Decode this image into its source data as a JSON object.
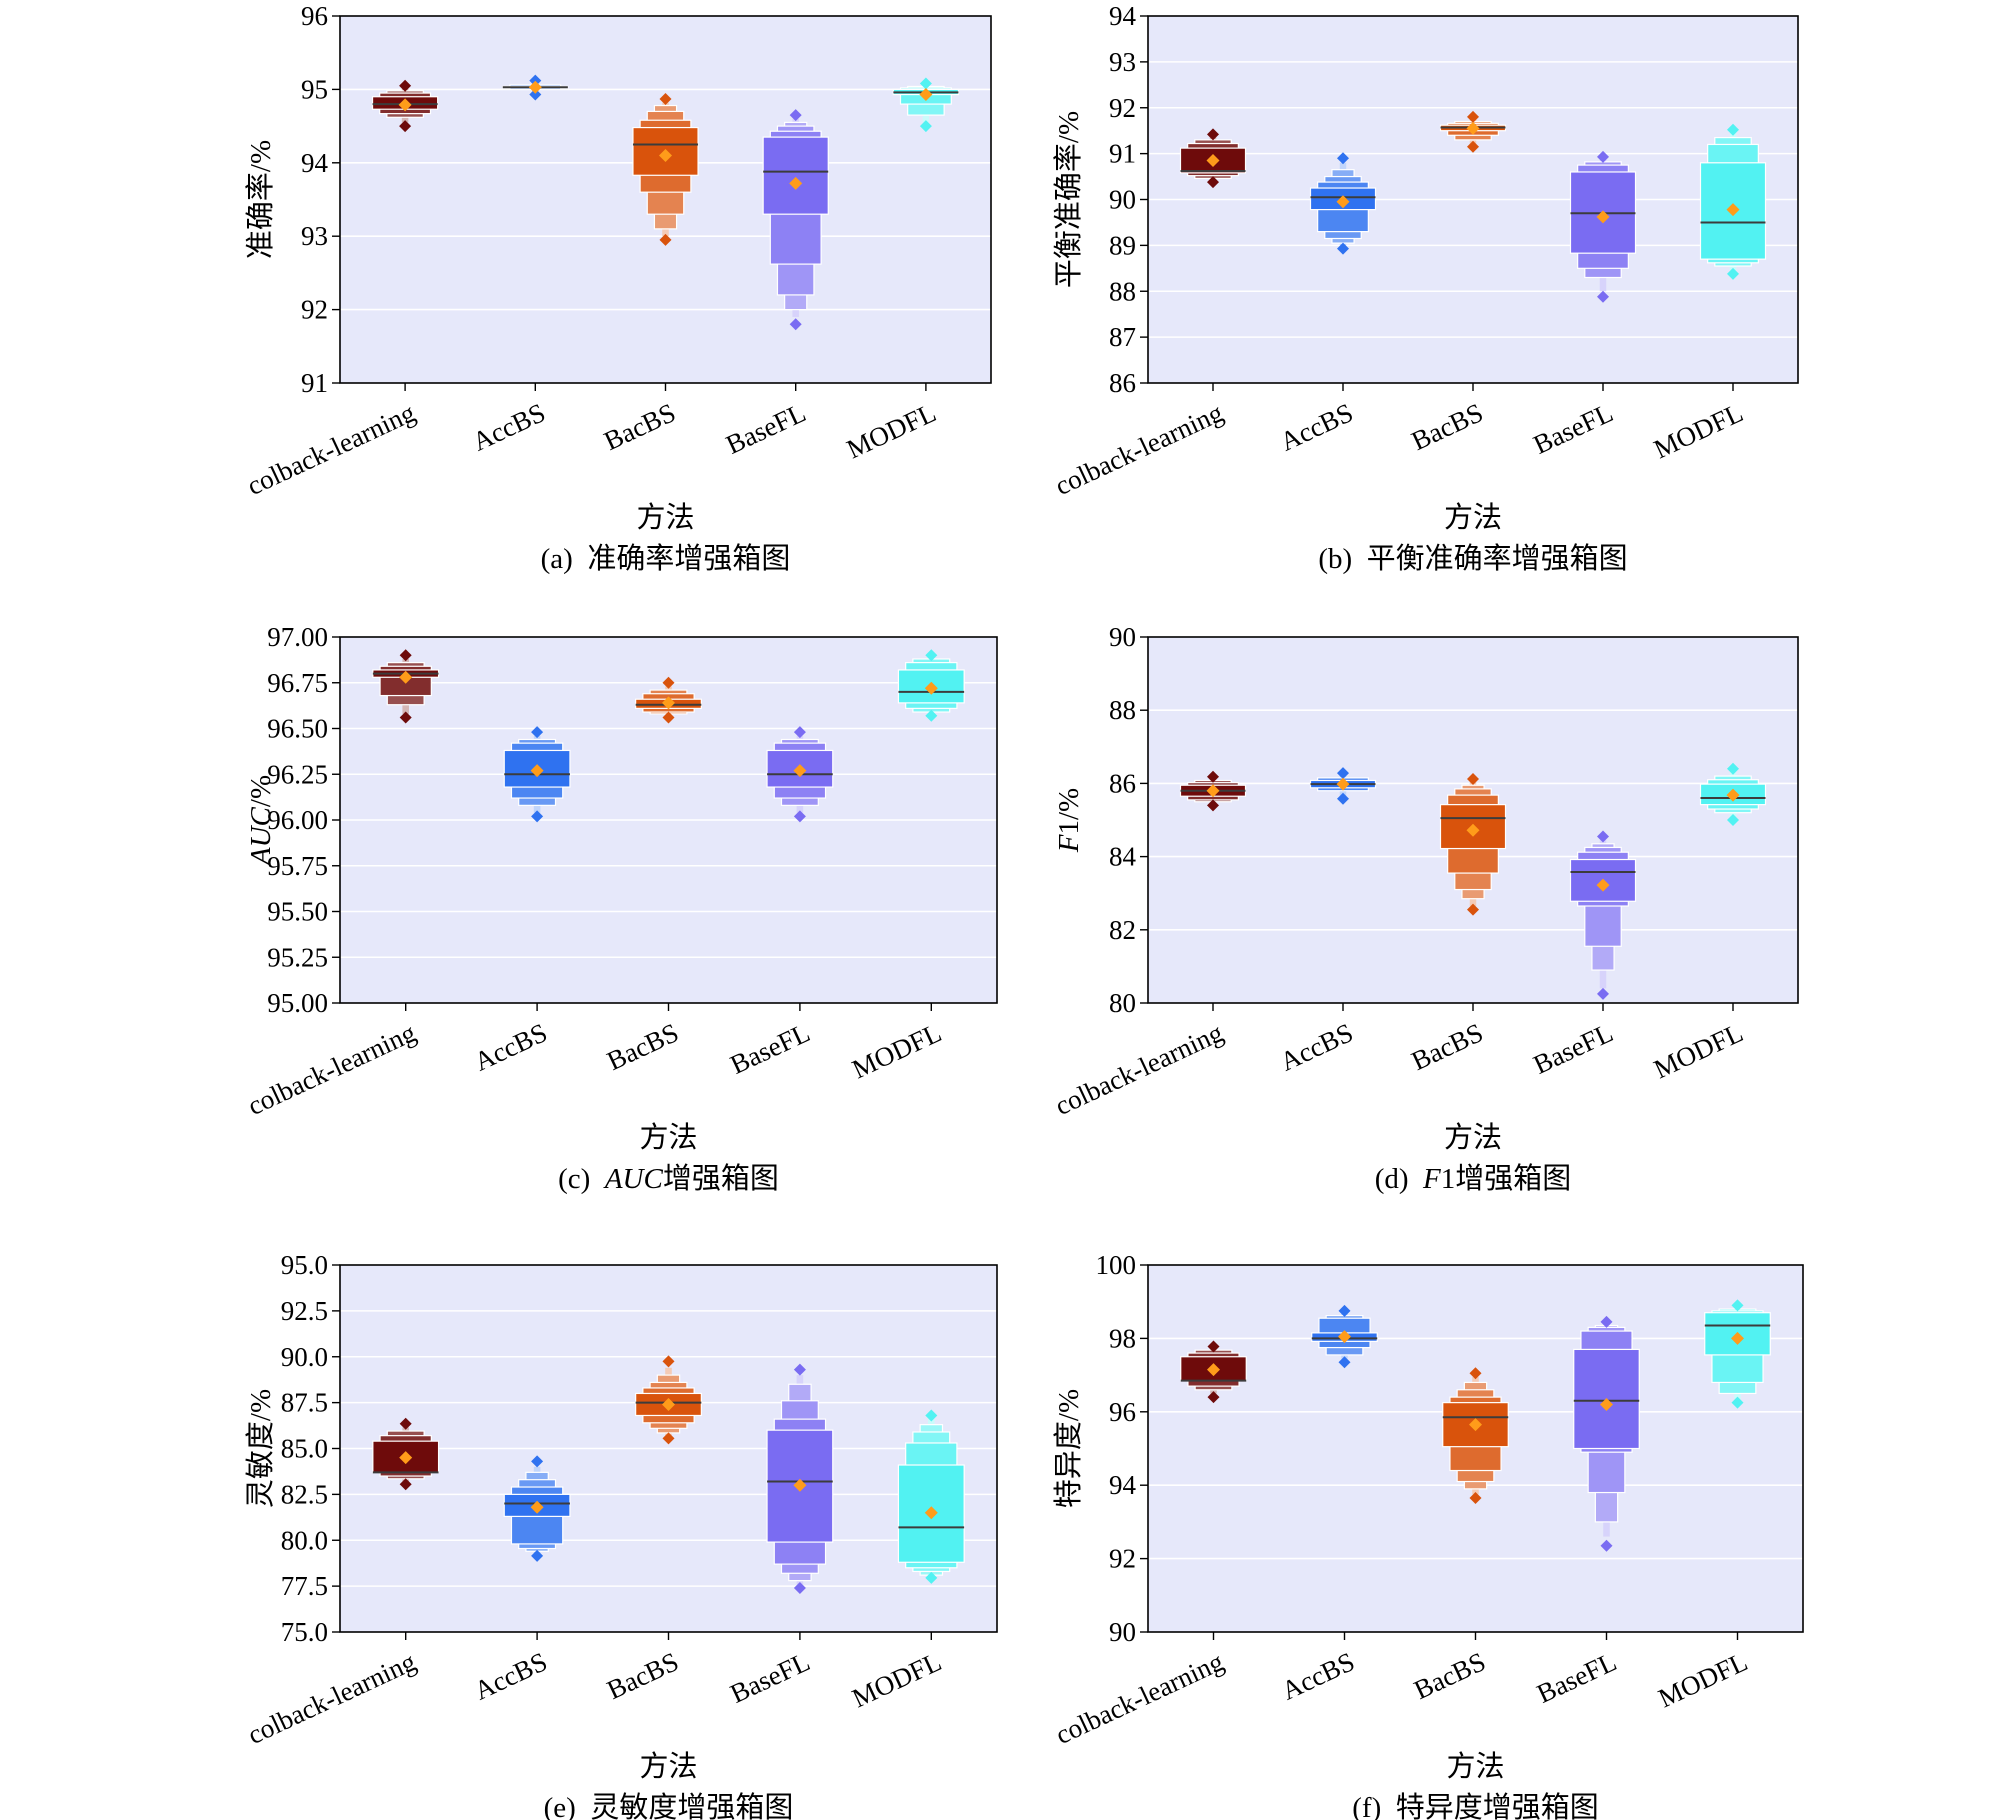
{
  "colors": {
    "plot_background": "#e6e8fa",
    "mean_marker": "#ff9c1a",
    "median_line": "#3c3c3c",
    "series": [
      "#6e0b0b",
      "#2f72f0",
      "#d9530c",
      "#7a6cf2",
      "#52f2f2"
    ]
  },
  "chart_data": [
    {
      "type": "boxen",
      "panel": "a",
      "caption_prefix": "(a)",
      "caption_italic": "",
      "caption_suffix": "准确率增强箱图",
      "xlabel": "方法",
      "ylabel_italic": "",
      "ylabel_rest": "准确率/%",
      "ylim": [
        91,
        96
      ],
      "yticks": [
        91,
        92,
        93,
        94,
        95,
        96
      ],
      "ytick_labels": [
        "91",
        "92",
        "93",
        "94",
        "95",
        "96"
      ],
      "grid": true,
      "categories": [
        "colback-learning",
        "AccBS",
        "BacBS",
        "BaseFL",
        "MODFL"
      ],
      "series": [
        {
          "category": "colback-learning",
          "median": 94.8,
          "mean": 94.79,
          "levels": [
            [
              94.73,
              94.9
            ],
            [
              94.67,
              94.95
            ],
            [
              94.62,
              94.98
            ]
          ],
          "whisker": [
            94.55,
            95.02
          ],
          "outliers": [
            94.5,
            95.05
          ]
        },
        {
          "category": "AccBS",
          "median": 95.03,
          "mean": 95.03,
          "levels": [
            [
              95.02,
              95.04
            ],
            [
              95.0,
              95.06
            ]
          ],
          "whisker": [
            94.97,
            95.08
          ],
          "outliers": [
            94.93,
            95.12
          ]
        },
        {
          "category": "BacBS",
          "median": 94.25,
          "mean": 94.1,
          "levels": [
            [
              93.83,
              94.48
            ],
            [
              93.6,
              94.58
            ],
            [
              93.3,
              94.7
            ],
            [
              93.1,
              94.78
            ]
          ],
          "whisker": [
            93.0,
            94.82
          ],
          "outliers": [
            92.95,
            94.87
          ]
        },
        {
          "category": "BaseFL",
          "median": 93.88,
          "mean": 93.72,
          "levels": [
            [
              93.3,
              94.35
            ],
            [
              92.62,
              94.43
            ],
            [
              92.2,
              94.5
            ],
            [
              92.0,
              94.55
            ]
          ],
          "whisker": [
            91.9,
            94.6
          ],
          "outliers": [
            91.8,
            94.65
          ]
        },
        {
          "category": "MODFL",
          "median": 94.96,
          "mean": 94.93,
          "levels": [
            [
              94.93,
              95.0
            ],
            [
              94.8,
              95.02
            ],
            [
              94.65,
              95.04
            ]
          ],
          "whisker": [
            94.55,
            95.06
          ],
          "outliers": [
            94.5,
            95.08
          ]
        }
      ]
    },
    {
      "type": "boxen",
      "panel": "b",
      "caption_prefix": "(b)",
      "caption_italic": "",
      "caption_suffix": "平衡准确率增强箱图",
      "xlabel": "方法",
      "ylabel_italic": "",
      "ylabel_rest": "平衡准确率/%",
      "ylim": [
        86,
        94
      ],
      "yticks": [
        86,
        87,
        88,
        89,
        90,
        91,
        92,
        93,
        94
      ],
      "ytick_labels": [
        "86",
        "87",
        "88",
        "89",
        "90",
        "91",
        "92",
        "93",
        "94"
      ],
      "grid": true,
      "categories": [
        "colback-learning",
        "AccBS",
        "BacBS",
        "BaseFL",
        "MODFL"
      ],
      "series": [
        {
          "category": "colback-learning",
          "median": 90.62,
          "mean": 90.85,
          "levels": [
            [
              90.58,
              91.12
            ],
            [
              90.52,
              91.22
            ],
            [
              90.46,
              91.3
            ]
          ],
          "whisker": [
            90.42,
            91.38
          ],
          "outliers": [
            90.38,
            91.42
          ]
        },
        {
          "category": "AccBS",
          "median": 90.05,
          "mean": 89.95,
          "levels": [
            [
              89.78,
              90.25
            ],
            [
              89.3,
              90.38
            ],
            [
              89.15,
              90.5
            ],
            [
              89.05,
              90.65
            ]
          ],
          "whisker": [
            89.0,
            90.8
          ],
          "outliers": [
            88.93,
            90.9
          ]
        },
        {
          "category": "BacBS",
          "median": 91.57,
          "mean": 91.55,
          "levels": [
            [
              91.5,
              91.62
            ],
            [
              91.4,
              91.66
            ],
            [
              91.3,
              91.7
            ]
          ],
          "whisker": [
            91.2,
            91.75
          ],
          "outliers": [
            91.15,
            91.8
          ]
        },
        {
          "category": "BaseFL",
          "median": 89.7,
          "mean": 89.62,
          "levels": [
            [
              88.83,
              90.6
            ],
            [
              88.5,
              90.75
            ],
            [
              88.3,
              90.82
            ]
          ],
          "whisker": [
            88.0,
            90.88
          ],
          "outliers": [
            87.88,
            90.93
          ]
        },
        {
          "category": "MODFL",
          "median": 89.5,
          "mean": 89.78,
          "levels": [
            [
              88.7,
              90.8
            ],
            [
              88.62,
              91.2
            ],
            [
              88.55,
              91.35
            ]
          ],
          "whisker": [
            88.45,
            91.45
          ],
          "outliers": [
            88.38,
            91.52
          ]
        }
      ]
    },
    {
      "type": "boxen",
      "panel": "c",
      "caption_prefix": "(c)",
      "caption_italic": "AUC",
      "caption_suffix": "增强箱图",
      "xlabel": "方法",
      "ylabel_italic": "AUC",
      "ylabel_rest": "/%",
      "ylim": [
        95.0,
        97.0
      ],
      "yticks": [
        95.0,
        95.25,
        95.5,
        95.75,
        96.0,
        96.25,
        96.5,
        96.75,
        97.0
      ],
      "ytick_labels": [
        "95.00",
        "95.25",
        "95.50",
        "95.75",
        "96.00",
        "96.25",
        "96.50",
        "96.75",
        "97.00"
      ],
      "grid": true,
      "categories": [
        "colback-learning",
        "AccBS",
        "BacBS",
        "BaseFL",
        "MODFL"
      ],
      "series": [
        {
          "category": "colback-learning",
          "median": 96.8,
          "mean": 96.78,
          "levels": [
            [
              96.78,
              96.82
            ],
            [
              96.68,
              96.84
            ],
            [
              96.63,
              96.86
            ]
          ],
          "whisker": [
            96.58,
            96.88
          ],
          "outliers": [
            96.56,
            96.9
          ]
        },
        {
          "category": "AccBS",
          "median": 96.25,
          "mean": 96.27,
          "levels": [
            [
              96.18,
              96.38
            ],
            [
              96.12,
              96.42
            ],
            [
              96.08,
              96.44
            ]
          ],
          "whisker": [
            96.04,
            96.46
          ],
          "outliers": [
            96.02,
            96.48
          ]
        },
        {
          "category": "BacBS",
          "median": 96.63,
          "mean": 96.64,
          "levels": [
            [
              96.61,
              96.66
            ],
            [
              96.59,
              96.69
            ],
            [
              96.58,
              96.71
            ]
          ],
          "whisker": [
            96.57,
            96.73
          ],
          "outliers": [
            96.56,
            96.75
          ]
        },
        {
          "category": "BaseFL",
          "median": 96.25,
          "mean": 96.27,
          "levels": [
            [
              96.18,
              96.38
            ],
            [
              96.12,
              96.42
            ],
            [
              96.08,
              96.44
            ]
          ],
          "whisker": [
            96.04,
            96.46
          ],
          "outliers": [
            96.02,
            96.48
          ]
        },
        {
          "category": "MODFL",
          "median": 96.7,
          "mean": 96.72,
          "levels": [
            [
              96.64,
              96.82
            ],
            [
              96.61,
              96.86
            ],
            [
              96.59,
              96.88
            ]
          ],
          "whisker": [
            96.58,
            96.89
          ],
          "outliers": [
            96.57,
            96.9
          ]
        }
      ]
    },
    {
      "type": "boxen",
      "panel": "d",
      "caption_prefix": "(d)",
      "caption_italic": "F",
      "caption_suffix": "1增强箱图",
      "xlabel": "方法",
      "ylabel_italic": "F",
      "ylabel_rest": "1/%",
      "ylim": [
        80,
        90
      ],
      "yticks": [
        80,
        82,
        84,
        86,
        88,
        90
      ],
      "ytick_labels": [
        "80",
        "82",
        "84",
        "86",
        "88",
        "90"
      ],
      "grid": true,
      "categories": [
        "colback-learning",
        "AccBS",
        "BacBS",
        "BaseFL",
        "MODFL"
      ],
      "series": [
        {
          "category": "colback-learning",
          "median": 85.8,
          "mean": 85.8,
          "levels": [
            [
              85.65,
              85.95
            ],
            [
              85.55,
              86.02
            ],
            [
              85.5,
              86.08
            ]
          ],
          "whisker": [
            85.45,
            86.12
          ],
          "outliers": [
            85.4,
            86.18
          ]
        },
        {
          "category": "AccBS",
          "median": 85.98,
          "mean": 85.98,
          "levels": [
            [
              85.88,
              86.08
            ],
            [
              85.8,
              86.15
            ]
          ],
          "whisker": [
            85.65,
            86.22
          ],
          "outliers": [
            85.58,
            86.28
          ]
        },
        {
          "category": "BacBS",
          "median": 85.05,
          "mean": 84.72,
          "levels": [
            [
              84.22,
              85.42
            ],
            [
              83.55,
              85.68
            ],
            [
              83.1,
              85.85
            ],
            [
              82.85,
              85.95
            ]
          ],
          "whisker": [
            82.65,
            86.05
          ],
          "outliers": [
            82.55,
            86.12
          ]
        },
        {
          "category": "BaseFL",
          "median": 83.58,
          "mean": 83.22,
          "levels": [
            [
              82.78,
              83.92
            ],
            [
              82.65,
              84.12
            ],
            [
              81.55,
              84.25
            ],
            [
              80.9,
              84.35
            ]
          ],
          "whisker": [
            80.4,
            84.45
          ],
          "outliers": [
            80.25,
            84.55
          ]
        },
        {
          "category": "MODFL",
          "median": 85.6,
          "mean": 85.68,
          "levels": [
            [
              85.42,
              85.98
            ],
            [
              85.3,
              86.1
            ],
            [
              85.2,
              86.2
            ]
          ],
          "whisker": [
            85.08,
            86.3
          ],
          "outliers": [
            85.0,
            86.4
          ]
        }
      ]
    },
    {
      "type": "boxen",
      "panel": "e",
      "caption_prefix": "(e)",
      "caption_italic": "",
      "caption_suffix": "灵敏度增强箱图",
      "xlabel": "方法",
      "ylabel_italic": "",
      "ylabel_rest": "灵敏度/%",
      "ylim": [
        75.0,
        95.0
      ],
      "yticks": [
        75.0,
        77.5,
        80.0,
        82.5,
        85.0,
        87.5,
        90.0,
        92.5,
        95.0
      ],
      "ytick_labels": [
        "75.0",
        "77.5",
        "80.0",
        "82.5",
        "85.0",
        "87.5",
        "90.0",
        "92.5",
        "95.0"
      ],
      "grid": true,
      "categories": [
        "colback-learning",
        "AccBS",
        "BacBS",
        "BaseFL",
        "MODFL"
      ],
      "series": [
        {
          "category": "colback-learning",
          "median": 83.7,
          "mean": 84.5,
          "levels": [
            [
              83.7,
              85.4
            ],
            [
              83.5,
              85.7
            ],
            [
              83.35,
              85.95
            ]
          ],
          "whisker": [
            83.2,
            86.15
          ],
          "outliers": [
            83.05,
            86.35
          ]
        },
        {
          "category": "AccBS",
          "median": 82.0,
          "mean": 81.8,
          "levels": [
            [
              81.3,
              82.5
            ],
            [
              79.8,
              82.9
            ],
            [
              79.55,
              83.3
            ],
            [
              79.4,
              83.7
            ]
          ],
          "whisker": [
            79.3,
            84.0
          ],
          "outliers": [
            79.15,
            84.3
          ]
        },
        {
          "category": "BacBS",
          "median": 87.5,
          "mean": 87.4,
          "levels": [
            [
              86.8,
              88.0
            ],
            [
              86.4,
              88.3
            ],
            [
              86.1,
              88.6
            ],
            [
              85.85,
              89.0
            ]
          ],
          "whisker": [
            85.7,
            89.4
          ],
          "outliers": [
            85.55,
            89.75
          ]
        },
        {
          "category": "BaseFL",
          "median": 83.2,
          "mean": 83.0,
          "levels": [
            [
              79.9,
              86.0
            ],
            [
              78.7,
              86.6
            ],
            [
              78.2,
              87.6
            ],
            [
              77.8,
              88.5
            ]
          ],
          "whisker": [
            77.6,
            89.0
          ],
          "outliers": [
            77.4,
            89.3
          ]
        },
        {
          "category": "MODFL",
          "median": 80.7,
          "mean": 81.5,
          "levels": [
            [
              78.8,
              84.1
            ],
            [
              78.5,
              85.3
            ],
            [
              78.3,
              85.9
            ],
            [
              78.1,
              86.3
            ]
          ],
          "whisker": [
            78.0,
            86.6
          ],
          "outliers": [
            77.95,
            86.8
          ]
        }
      ]
    },
    {
      "type": "boxen",
      "panel": "f",
      "caption_prefix": "(f)",
      "caption_italic": "",
      "caption_suffix": "特异度增强箱图",
      "xlabel": "方法",
      "ylabel_italic": "",
      "ylabel_rest": "特异度/%",
      "ylim": [
        90,
        100
      ],
      "yticks": [
        90,
        92,
        94,
        96,
        98,
        100
      ],
      "ytick_labels": [
        "90",
        "92",
        "94",
        "96",
        "98",
        "100"
      ],
      "grid": true,
      "categories": [
        "colback-learning",
        "AccBS",
        "BacBS",
        "BaseFL",
        "MODFL"
      ],
      "series": [
        {
          "category": "colback-learning",
          "median": 96.85,
          "mean": 97.15,
          "levels": [
            [
              96.85,
              97.5
            ],
            [
              96.7,
              97.6
            ],
            [
              96.6,
              97.68
            ]
          ],
          "whisker": [
            96.5,
            97.72
          ],
          "outliers": [
            96.4,
            97.78
          ]
        },
        {
          "category": "AccBS",
          "median": 98.0,
          "mean": 98.05,
          "levels": [
            [
              97.92,
              98.15
            ],
            [
              97.75,
              98.55
            ],
            [
              97.55,
              98.62
            ]
          ],
          "whisker": [
            97.45,
            98.7
          ],
          "outliers": [
            97.35,
            98.75
          ]
        },
        {
          "category": "BacBS",
          "median": 95.85,
          "mean": 95.65,
          "levels": [
            [
              95.05,
              96.25
            ],
            [
              94.4,
              96.4
            ],
            [
              94.1,
              96.6
            ],
            [
              93.9,
              96.8
            ]
          ],
          "whisker": [
            93.75,
            96.95
          ],
          "outliers": [
            93.65,
            97.05
          ]
        },
        {
          "category": "BaseFL",
          "median": 96.3,
          "mean": 96.2,
          "levels": [
            [
              95.0,
              97.7
            ],
            [
              94.9,
              98.2
            ],
            [
              93.8,
              98.3
            ],
            [
              93.0,
              98.35
            ]
          ],
          "whisker": [
            92.6,
            98.4
          ],
          "outliers": [
            92.35,
            98.45
          ]
        },
        {
          "category": "MODFL",
          "median": 98.35,
          "mean": 98.0,
          "levels": [
            [
              97.55,
              98.7
            ],
            [
              96.8,
              98.75
            ],
            [
              96.5,
              98.8
            ]
          ],
          "whisker": [
            96.35,
            98.85
          ],
          "outliers": [
            96.25,
            98.9
          ]
        }
      ]
    }
  ]
}
